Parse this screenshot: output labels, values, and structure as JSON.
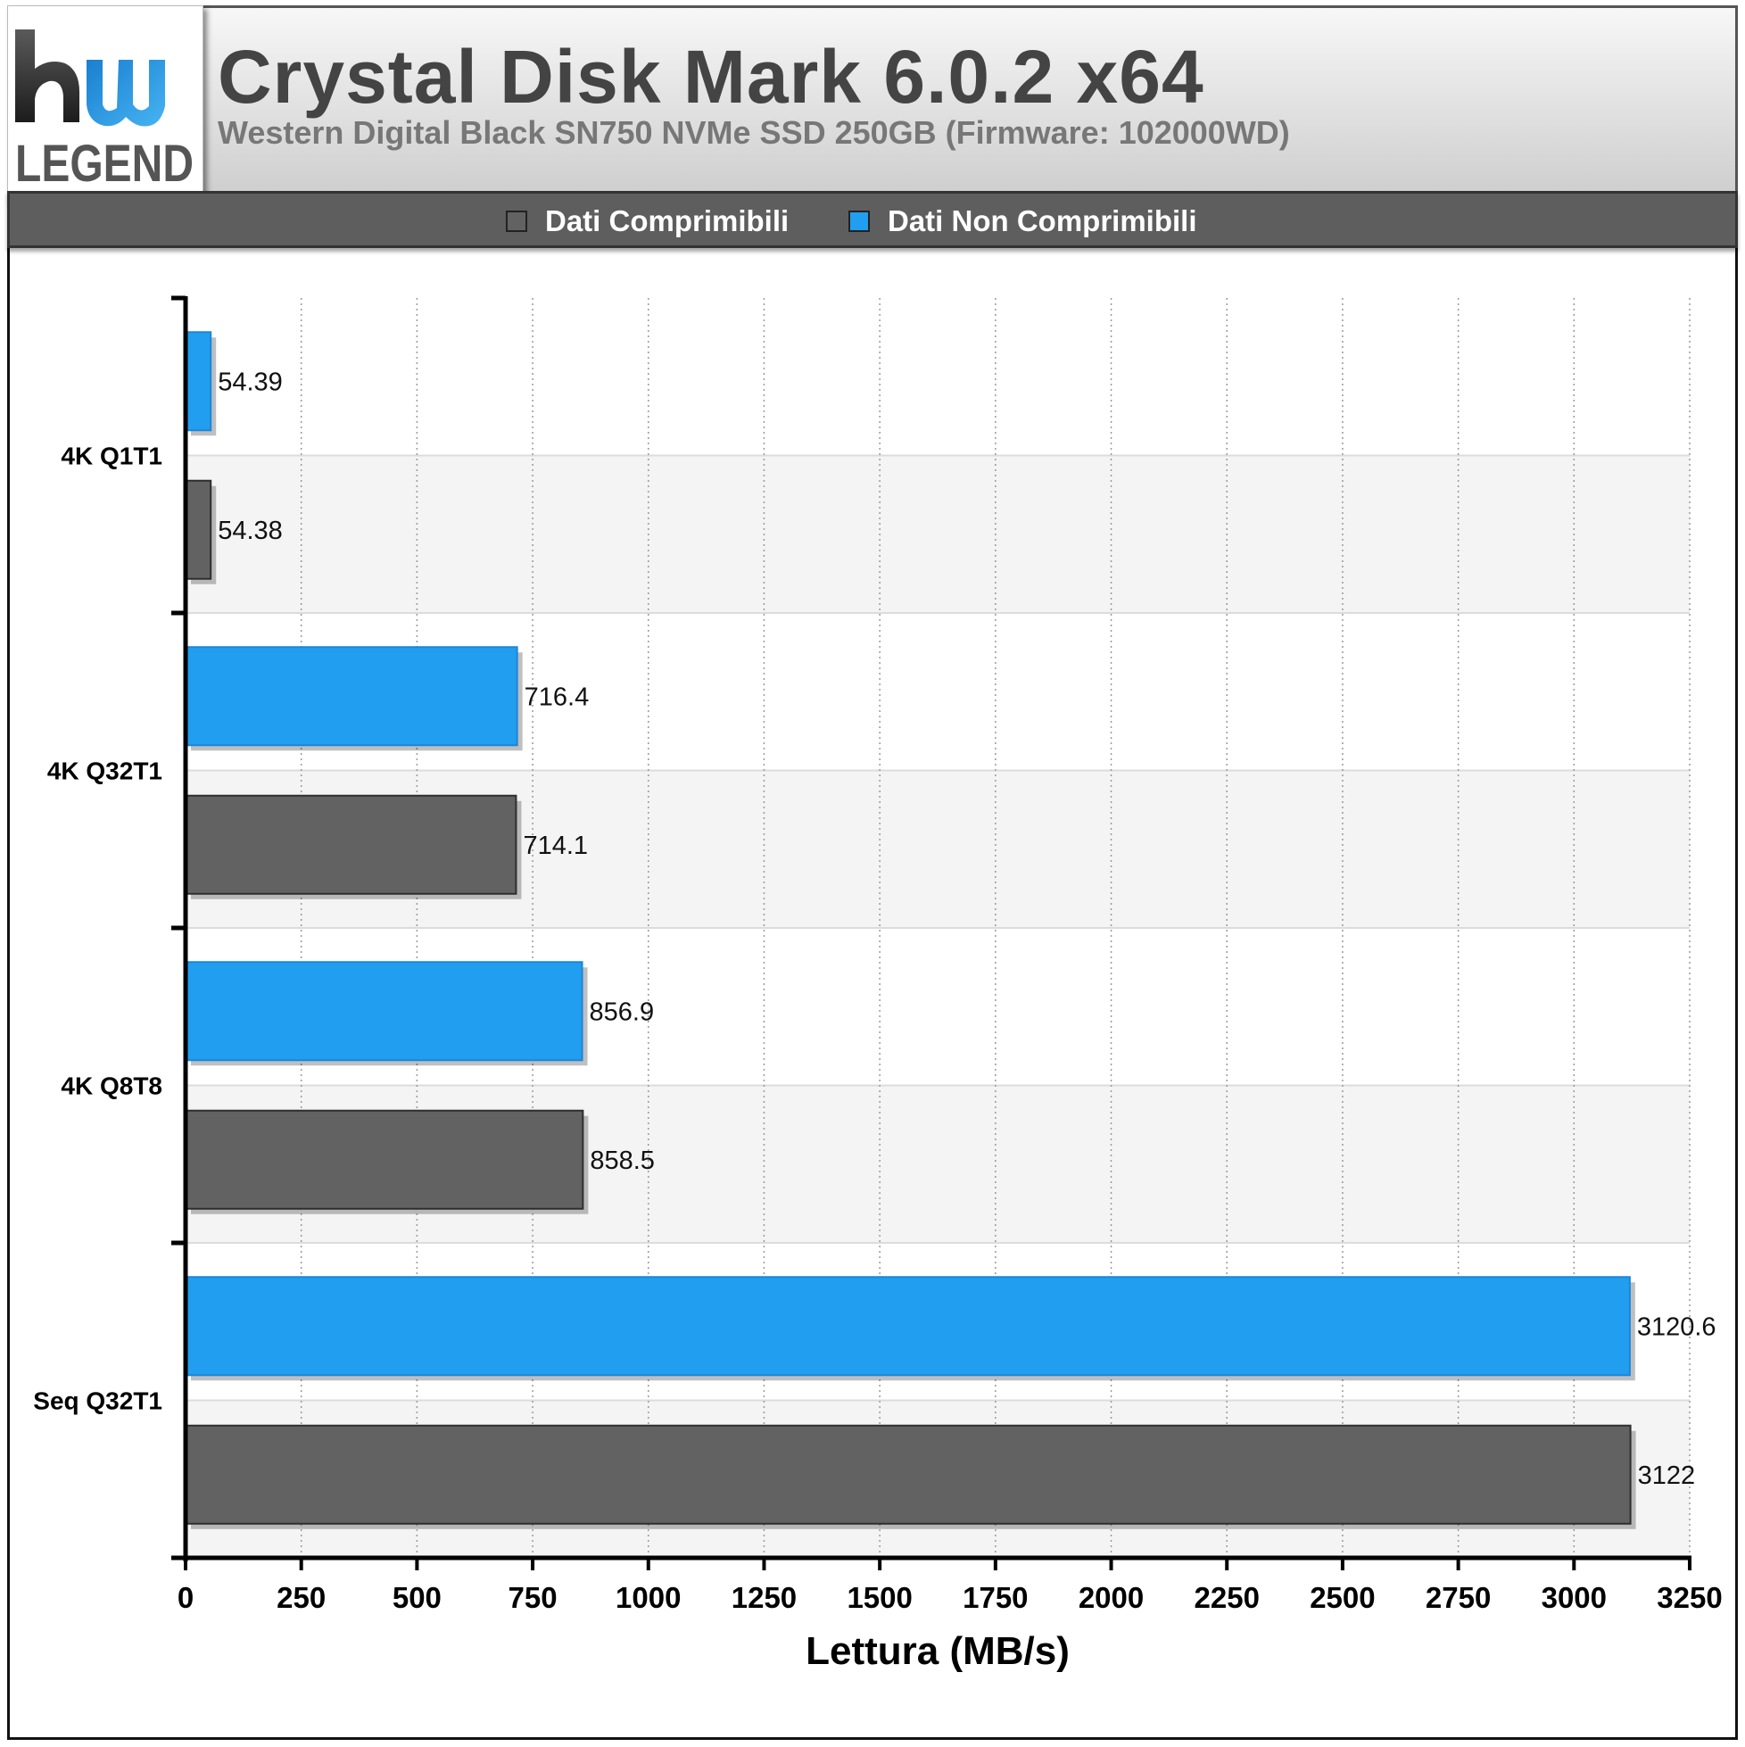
{
  "header": {
    "title": "Crystal Disk Mark 6.0.2 x64",
    "subtitle": "Western Digital Black SN750 NVMe SSD 250GB (Firmware: 102000WD)",
    "logo_text": "hw LEGEND"
  },
  "colors": {
    "compressible": "#626262",
    "non_compressible": "#219ef0",
    "legend_bar": "#5e5e5e"
  },
  "chart_data": {
    "type": "bar",
    "orientation": "horizontal",
    "categories": [
      "4K Q1T1",
      "4K Q32T1",
      "4K Q8T8",
      "Seq Q32T1"
    ],
    "series": [
      {
        "name": "Dati Comprimibili",
        "values": [
          54.38,
          714.1,
          858.5,
          3122
        ],
        "labels": [
          "54.38",
          "714.1",
          "858.5",
          "3122"
        ]
      },
      {
        "name": "Dati Non Comprimibili",
        "values": [
          54.39,
          716.4,
          856.9,
          3120.6
        ],
        "labels": [
          "54.39",
          "716.4",
          "856.9",
          "3120.6"
        ]
      }
    ],
    "xlabel": "Lettura (MB/s)",
    "xlim": [
      0,
      3250
    ],
    "xticks": [
      "0",
      "250",
      "500",
      "750",
      "1000",
      "1250",
      "1500",
      "1750",
      "2000",
      "2250",
      "2500",
      "2750",
      "3000",
      "3250"
    ],
    "grid": "vertical dotted",
    "legend_position": "top"
  }
}
